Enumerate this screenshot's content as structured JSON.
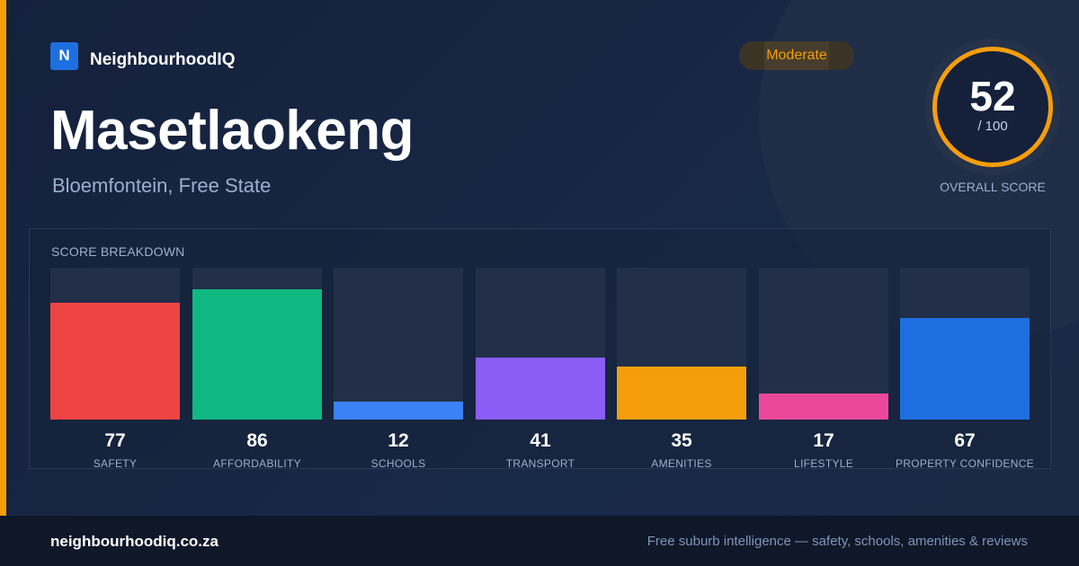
{
  "brand": {
    "logo_letter": "N",
    "name": "NeighbourhoodIQ"
  },
  "suburb": {
    "name": "Masetlaokeng",
    "location": "Bloemfontein, Free State"
  },
  "rating_badge": "Moderate",
  "overall": {
    "score": "52",
    "out_of": "/ 100",
    "label": "OVERALL SCORE"
  },
  "colors": {
    "accent": "#f59e0b",
    "background": "#15213b"
  },
  "breakdown": {
    "title": "SCORE BREAKDOWN",
    "items": [
      {
        "label": "SAFETY",
        "value": 77,
        "display": "77",
        "color": "#ef4444"
      },
      {
        "label": "AFFORDABILITY",
        "value": 86,
        "display": "86",
        "color": "#10b981"
      },
      {
        "label": "SCHOOLS",
        "value": 12,
        "display": "12",
        "color": "#3b82f6"
      },
      {
        "label": "TRANSPORT",
        "value": 41,
        "display": "41",
        "color": "#8b5cf6"
      },
      {
        "label": "AMENITIES",
        "value": 35,
        "display": "35",
        "color": "#f59e0b"
      },
      {
        "label": "LIFESTYLE",
        "value": 17,
        "display": "17",
        "color": "#ec4899"
      },
      {
        "label": "PROPERTY CONFIDENCE",
        "value": 67,
        "display": "67",
        "color": "#1d6fe0"
      }
    ]
  },
  "footer": {
    "url": "neighbourhoodiq.co.za",
    "tagline": "Free suburb intelligence — safety, schools, amenities & reviews"
  }
}
